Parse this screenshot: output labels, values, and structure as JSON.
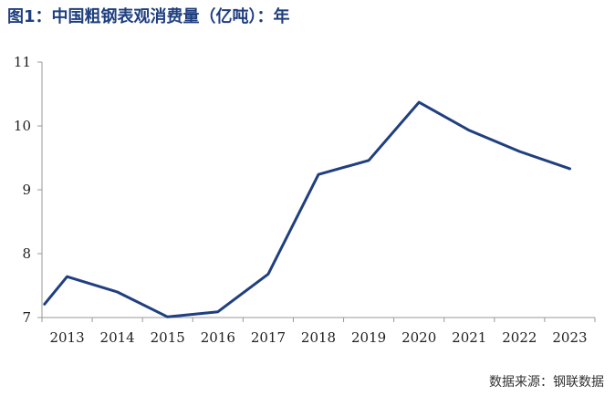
{
  "chart_data": {
    "type": "line",
    "title": "图1：中国粗钢表观消费量（亿吨）：年",
    "x": [
      2012.55,
      2013,
      2014,
      2015,
      2016,
      2017,
      2018,
      2019,
      2020,
      2021,
      2022,
      2023
    ],
    "categories": [
      "2013",
      "2014",
      "2015",
      "2016",
      "2017",
      "2018",
      "2019",
      "2020",
      "2021",
      "2022",
      "2023"
    ],
    "series": [
      {
        "values": [
          7.21,
          7.64,
          7.4,
          7.01,
          7.09,
          7.68,
          9.24,
          9.46,
          10.37,
          9.93,
          9.6,
          9.33
        ]
      }
    ],
    "yticks": [
      7,
      8,
      9,
      10,
      11
    ],
    "ylim": [
      7,
      11
    ],
    "xlabel": "",
    "ylabel": "",
    "grid": false,
    "line_color": "#1f3f7f",
    "source": "数据来源：钢联数据"
  }
}
